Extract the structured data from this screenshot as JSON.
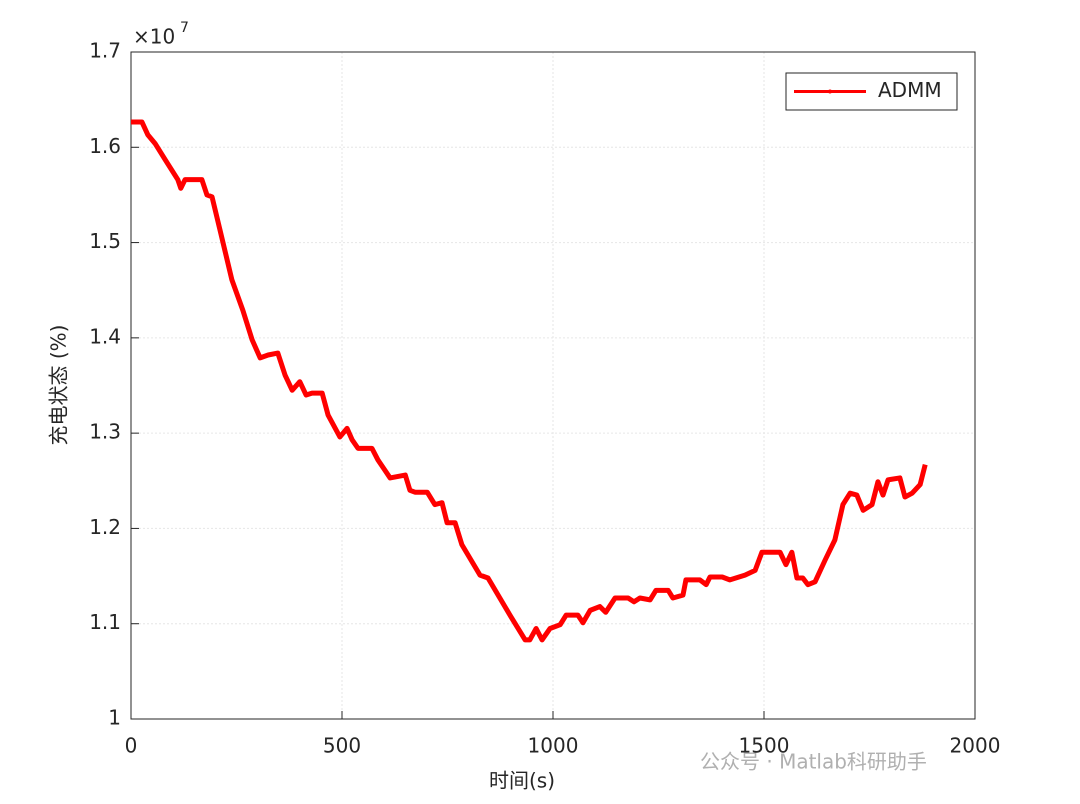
{
  "chart_data": {
    "type": "line",
    "xlabel": "时间(s)",
    "ylabel": "充电状态 (%)",
    "y_multiplier": "×10",
    "y_exponent": "7",
    "watermark": "公众号 · Matlab科研助手",
    "xlim": [
      0,
      2000
    ],
    "xticks": [
      0,
      500,
      1000,
      1500,
      2000
    ],
    "ylim": [
      1,
      1.7
    ],
    "yticks": [
      1,
      1.1,
      1.2,
      1.3,
      1.4,
      1.5,
      1.6,
      1.7
    ],
    "grid": true,
    "legend": "upper right",
    "x": [
      0,
      26,
      40,
      57,
      81,
      111,
      118,
      128,
      168,
      180,
      192,
      211,
      239,
      265,
      287,
      306,
      325,
      348,
      365,
      382,
      400,
      415,
      429,
      453,
      467,
      495,
      512,
      524,
      538,
      571,
      585,
      614,
      650,
      661,
      673,
      702,
      720,
      737,
      749,
      768,
      784,
      827,
      846,
      874,
      898,
      934,
      945,
      960,
      974,
      993,
      1017,
      1031,
      1059,
      1071,
      1088,
      1111,
      1125,
      1147,
      1178,
      1192,
      1206,
      1230,
      1244,
      1273,
      1284,
      1308,
      1315,
      1348,
      1363,
      1372,
      1401,
      1419,
      1455,
      1479,
      1495,
      1538,
      1552,
      1566,
      1578,
      1592,
      1604,
      1621,
      1645,
      1668,
      1687,
      1704,
      1720,
      1735,
      1756,
      1770,
      1782,
      1794,
      1822,
      1834,
      1851,
      1870,
      1882
    ],
    "series": [
      {
        "name": "ADMM",
        "color": "#ff0000",
        "values": [
          1.6265,
          1.6265,
          1.613,
          1.604,
          1.587,
          1.566,
          1.557,
          1.566,
          1.566,
          1.55,
          1.548,
          1.513,
          1.461,
          1.429,
          1.398,
          1.379,
          1.382,
          1.384,
          1.361,
          1.345,
          1.354,
          1.34,
          1.342,
          1.342,
          1.319,
          1.296,
          1.305,
          1.293,
          1.284,
          1.284,
          1.272,
          1.253,
          1.256,
          1.24,
          1.238,
          1.238,
          1.225,
          1.227,
          1.206,
          1.206,
          1.183,
          1.151,
          1.148,
          1.127,
          1.109,
          1.083,
          1.083,
          1.095,
          1.083,
          1.095,
          1.099,
          1.109,
          1.109,
          1.101,
          1.114,
          1.118,
          1.112,
          1.127,
          1.127,
          1.123,
          1.127,
          1.125,
          1.135,
          1.135,
          1.127,
          1.13,
          1.146,
          1.146,
          1.141,
          1.149,
          1.149,
          1.146,
          1.151,
          1.156,
          1.175,
          1.175,
          1.162,
          1.175,
          1.148,
          1.148,
          1.141,
          1.144,
          1.167,
          1.188,
          1.225,
          1.237,
          1.235,
          1.219,
          1.225,
          1.249,
          1.235,
          1.251,
          1.253,
          1.233,
          1.237,
          1.246,
          1.267
        ]
      }
    ]
  }
}
